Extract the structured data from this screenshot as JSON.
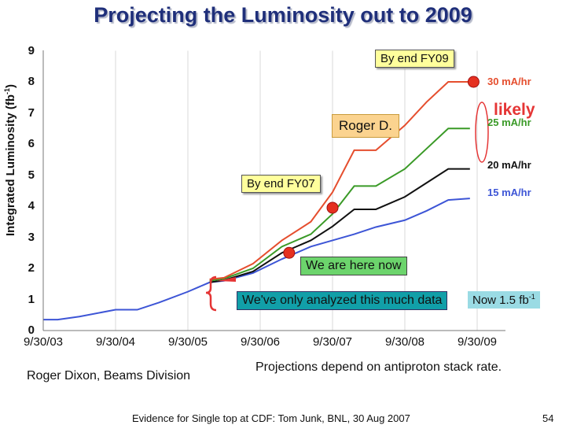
{
  "title": "Projecting the Luminosity out to 2009",
  "chart_data": {
    "type": "line",
    "ylabel": "Integrated Luminosity (fb",
    "ylabel_sup": "-1",
    "ylabel_close": ")",
    "ylim": [
      0,
      9
    ],
    "yticks": [
      "0",
      "1",
      "2",
      "3",
      "4",
      "5",
      "6",
      "7",
      "8",
      "9"
    ],
    "x_categories": [
      "9/30/03",
      "9/30/04",
      "9/30/05",
      "9/30/06",
      "9/30/07",
      "9/30/08",
      "9/30/09"
    ],
    "x_range": [
      0,
      6.2
    ],
    "series": [
      {
        "name": "15 mA/hr",
        "color": "#3d55d6",
        "x": [
          0,
          0.2,
          0.5,
          1,
          1.3,
          1.6,
          2,
          2.3,
          2.5,
          2.9,
          3.3,
          3.7,
          4,
          4.3,
          4.6,
          5,
          5.3,
          5.6,
          5.9
        ],
        "y": [
          0.35,
          0.35,
          0.45,
          0.67,
          0.67,
          0.9,
          1.25,
          1.55,
          1.6,
          1.85,
          2.3,
          2.7,
          2.9,
          3.1,
          3.33,
          3.55,
          3.85,
          4.2,
          4.25
        ]
      },
      {
        "name": "20 mA/hr",
        "color": "#111111",
        "x": [
          2.3,
          2.5,
          2.9,
          3.3,
          3.7,
          4,
          4.3,
          4.6,
          5,
          5.3,
          5.6,
          5.9
        ],
        "y": [
          1.55,
          1.62,
          1.9,
          2.5,
          2.9,
          3.35,
          3.9,
          3.9,
          4.3,
          4.75,
          5.2,
          5.2
        ]
      },
      {
        "name": "25 mA/hr",
        "color": "#3a9a27",
        "x": [
          2.3,
          2.5,
          2.9,
          3.3,
          3.7,
          4,
          4.3,
          4.6,
          5,
          5.3,
          5.6,
          5.9
        ],
        "y": [
          1.6,
          1.67,
          2.0,
          2.7,
          3.1,
          3.75,
          4.65,
          4.65,
          5.2,
          5.85,
          6.5,
          6.5
        ]
      },
      {
        "name": "30 mA/hr",
        "color": "#e54e2e",
        "x": [
          2.3,
          2.5,
          2.9,
          3.3,
          3.7,
          4,
          4.3,
          4.6,
          5,
          5.3,
          5.6,
          5.9
        ],
        "y": [
          1.65,
          1.7,
          2.15,
          2.9,
          3.5,
          4.45,
          5.8,
          5.8,
          6.6,
          7.35,
          8.0,
          8.0
        ]
      }
    ],
    "markers": [
      {
        "x": 3.4,
        "y": 2.5,
        "color": "#e53020"
      },
      {
        "x": 4.0,
        "y": 3.95,
        "color": "#e53020"
      },
      {
        "x": 5.95,
        "y": 8.0,
        "color": "#e53020"
      }
    ],
    "series_labels": [
      {
        "text": "30 mA/hr",
        "color": "#e54e2e"
      },
      {
        "text": "25 mA/hr",
        "color": "#3a9a27"
      },
      {
        "text": "20 mA/hr",
        "color": "#111111"
      },
      {
        "text": "15 mA/hr",
        "color": "#3d55d6"
      }
    ],
    "annotations": {
      "by_end_fy09": "By end FY09",
      "by_end_fy07": "By end FY07",
      "roger_d": "Roger D.",
      "we_are_here": "We are here now",
      "analyzed": "We've only analyzed this much data",
      "now_value": "Now 1.5 fb",
      "now_value_sup": "-1",
      "likely": "likely"
    }
  },
  "author": "Roger Dixon, Beams Division",
  "projection_note": "Projections depend on antiproton stack rate.",
  "footer": "Evidence for Single top at CDF: Tom Junk, BNL, 30 Aug 2007",
  "page_number": "54"
}
